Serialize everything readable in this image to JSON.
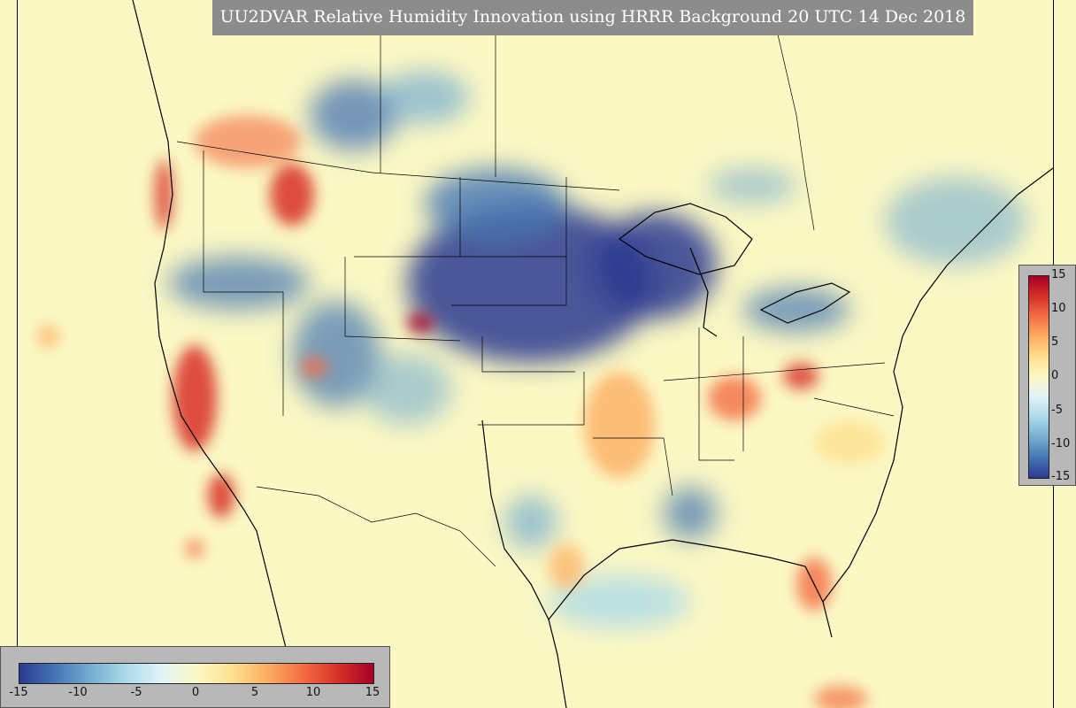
{
  "title": "UU2DVAR Relative Humidity Innovation using HRRR Background 20 UTC 14 Dec 2018",
  "map": {
    "variable": "Relative Humidity Innovation",
    "background_color": "#fbf8c4",
    "colormap": [
      "#2b3990",
      "#4575b4",
      "#74add1",
      "#abd9e9",
      "#e0f3f8",
      "#ffffbf",
      "#fee090",
      "#fdae61",
      "#f46d43",
      "#d73027",
      "#a50026"
    ],
    "range": [
      -15,
      15
    ]
  },
  "colorbar_vertical": {
    "ticks": [
      "15",
      "10",
      "5",
      "0",
      "-5",
      "-10",
      "-15"
    ]
  },
  "colorbar_horizontal": {
    "ticks": [
      "-15",
      "-10",
      "-5",
      "0",
      "5",
      "10",
      "15"
    ]
  }
}
